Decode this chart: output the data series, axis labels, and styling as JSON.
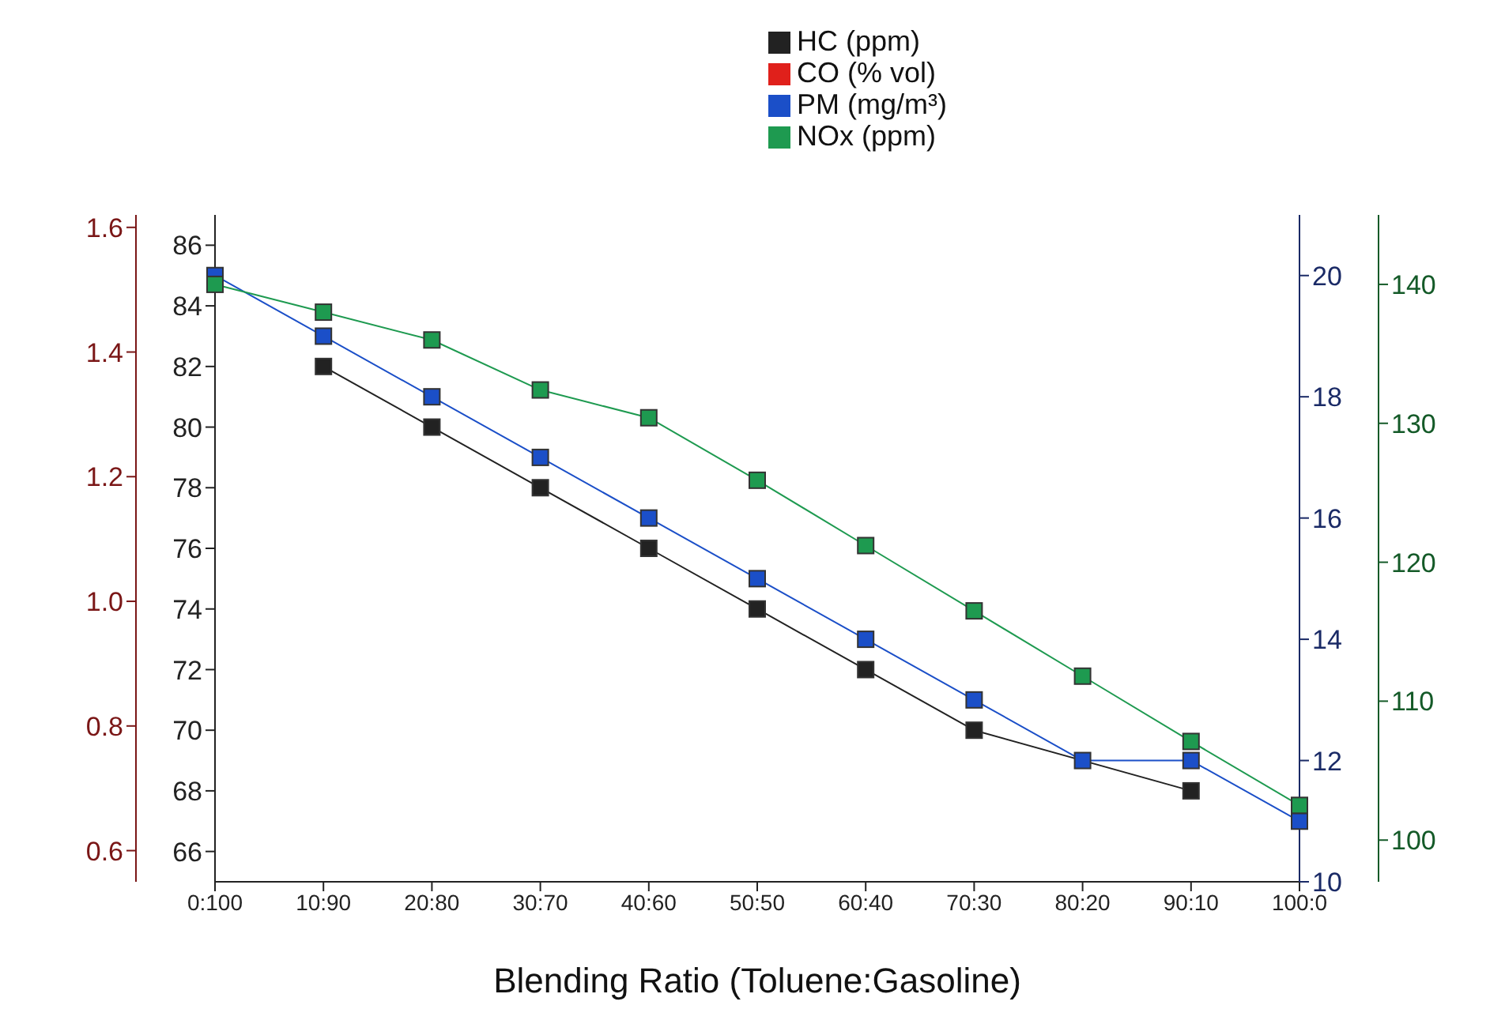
{
  "chart_data": [
    {
      "type": "line",
      "xlabel": "Blending Ratio (Toluene:Gasoline)",
      "categories": [
        "0:100",
        "10:90",
        "20:80",
        "30:70",
        "40:60",
        "50:50",
        "60:40",
        "70:30",
        "80:20",
        "90:10",
        "100:0"
      ],
      "series": [
        {
          "name": "HC (ppm)",
          "color": "#222222",
          "values": [
            null,
            82,
            80,
            78,
            76,
            74,
            72,
            70,
            null,
            68,
            null
          ]
        },
        {
          "name": "CO (% vol)",
          "color": "#e0201b",
          "axis": "y2",
          "values": [
            null,
            null,
            null,
            null,
            null,
            null,
            null,
            null,
            null,
            null,
            null
          ]
        }
      ],
      "ylim": [
        65,
        87
      ],
      "yticks": [
        66,
        68,
        70,
        72,
        74,
        76,
        78,
        80,
        82,
        84,
        86
      ],
      "y2lim": [
        0.55,
        1.62
      ],
      "y2ticks": [
        0.6,
        0.8,
        {
          "value": 1,
          "label": "1.0"
        },
        1.2,
        1.4,
        1.6
      ],
      "marker": "square",
      "line_style": "solid",
      "legend": "top"
    },
    {
      "type": "line",
      "categories": [
        null,
        null,
        null,
        null,
        null,
        null,
        null,
        null,
        null,
        null,
        null
      ],
      "series": [
        {
          "name": "PM (mg/m³)",
          "color": "#1b4fc8",
          "values": [
            20,
            19,
            18,
            17,
            16,
            15,
            14,
            13,
            12,
            12,
            11
          ]
        },
        {
          "name": "NOx (ppm)",
          "color": "#1e9a50",
          "axis": "y2",
          "values": [
            140,
            138,
            136,
            132.4,
            130.4,
            125.9,
            121.2,
            116.5,
            111.8,
            107.1,
            102.5
          ]
        }
      ],
      "ylim": [
        10,
        21
      ],
      "yticks": [
        10,
        12,
        14,
        16,
        18,
        20
      ],
      "y2lim": [
        97,
        145
      ],
      "y2ticks": [
        100,
        110,
        120,
        130,
        140
      ],
      "marker": "square",
      "line_style": "solid",
      "legend": "top",
      "tick_labels": "y"
    }
  ]
}
